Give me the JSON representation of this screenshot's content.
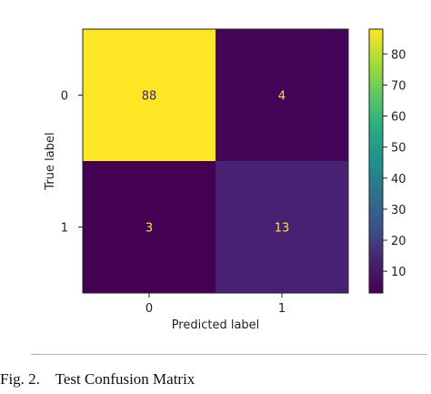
{
  "chart_data": {
    "type": "heatmap",
    "title": "",
    "xlabel": "Predicted label",
    "ylabel": "True label",
    "x_categories": [
      "0",
      "1"
    ],
    "y_categories": [
      "0",
      "1"
    ],
    "values": [
      [
        88,
        4
      ],
      [
        3,
        13
      ]
    ],
    "colormap": "viridis",
    "colorbar": {
      "min": 3,
      "max": 88,
      "ticks": [
        10,
        20,
        30,
        40,
        50,
        60,
        70,
        80
      ]
    },
    "cell_text_colors": {
      "on_bright": "#3b2a6b",
      "on_dark": "#f2e24a"
    }
  },
  "caption": "Fig. 2.    Test Confusion Matrix",
  "colors": {
    "viridis_low": "#440154",
    "viridis_high": "#fde725",
    "caption_rule": "#9fb7cc"
  }
}
